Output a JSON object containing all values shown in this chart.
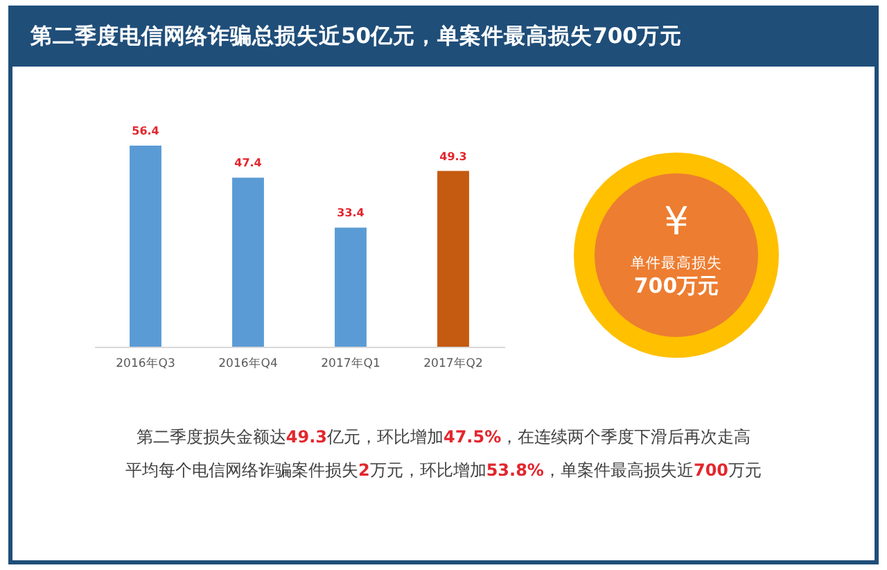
{
  "chart_data": [
    {
      "type": "bar",
      "title": "第二季度电信网络诈骗总损失近50亿元，单案件最高损失700万元",
      "categories": [
        "2016年Q3",
        "2016年Q4",
        "2017年Q1",
        "2017年Q2"
      ],
      "values": [
        56.4,
        47.4,
        33.4,
        49.3
      ],
      "colors": [
        "#5b9bd5",
        "#5b9bd5",
        "#5b9bd5",
        "#c55a11"
      ],
      "data_labels": true,
      "tick_labels": "x",
      "annotations": [
        "第二季度损失金额达49.3亿元，环比增加47.5%，在连续两个季度下滑后再次走高",
        "平均每个电信网络诈骗案件损失2万元，环比增加53.8%，单案件最高损失近700万元"
      ]
    },
    {
      "type": "other",
      "annotations": [
        "¥",
        "单件最高损失",
        "700万元"
      ]
    }
  ]
}
